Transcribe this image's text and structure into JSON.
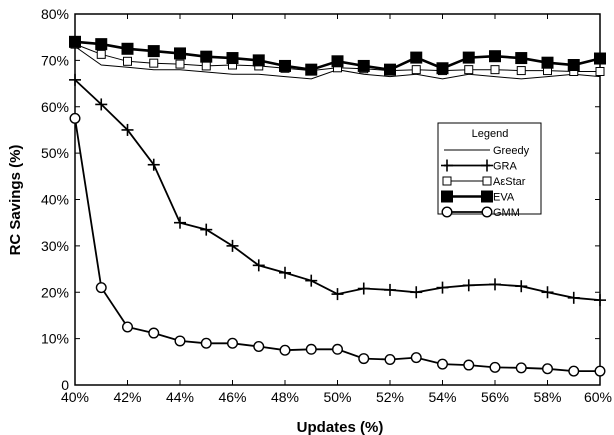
{
  "chart_data": {
    "type": "line",
    "title": "",
    "xlabel": "Updates (%)",
    "ylabel": "RC Savings (%)",
    "x": [
      40,
      41,
      42,
      43,
      44,
      45,
      46,
      47,
      48,
      49,
      50,
      51,
      52,
      53,
      54,
      55,
      56,
      57,
      58,
      59,
      60
    ],
    "xlim": [
      40,
      60
    ],
    "ylim": [
      0,
      80
    ],
    "x_ticks": [
      "40%",
      "42%",
      "44%",
      "46%",
      "48%",
      "50%",
      "52%",
      "54%",
      "56%",
      "58%",
      "60%"
    ],
    "y_ticks": [
      "0",
      "10%",
      "20%",
      "30%",
      "40%",
      "50%",
      "60%",
      "70%",
      "80%"
    ],
    "grid": false,
    "legend": {
      "title": "Legend",
      "position": "right"
    },
    "series": [
      {
        "name": "Greedy",
        "marker": "none",
        "color": "#000000",
        "values": [
          73.0,
          69.0,
          68.5,
          68.0,
          68.0,
          67.5,
          67.0,
          67.0,
          66.5,
          66.0,
          68.0,
          67.0,
          66.5,
          67.0,
          66.0,
          67.0,
          66.5,
          66.0,
          66.5,
          67.0,
          66.5
        ]
      },
      {
        "name": "GRA",
        "marker": "plus",
        "color": "#000000",
        "values": [
          65.8,
          60.5,
          55.0,
          47.5,
          35.0,
          33.5,
          30.0,
          25.8,
          24.2,
          22.5,
          19.6,
          20.8,
          20.5,
          20.0,
          21.0,
          21.5,
          21.7,
          21.3,
          20.0,
          18.8,
          18.3
        ]
      },
      {
        "name": "AεStar",
        "marker": "square-open",
        "color": "#000000",
        "values": [
          73.5,
          71.3,
          69.8,
          69.4,
          69.2,
          68.8,
          69.0,
          68.8,
          68.3,
          67.8,
          68.4,
          68.2,
          67.8,
          68.0,
          67.8,
          68.0,
          68.0,
          67.8,
          67.8,
          67.6,
          67.6
        ]
      },
      {
        "name": "EVA",
        "marker": "square-filled",
        "color": "#000000",
        "values": [
          74.0,
          73.5,
          72.5,
          72.0,
          71.5,
          70.8,
          70.5,
          70.0,
          68.8,
          68.0,
          69.8,
          68.8,
          68.0,
          70.6,
          68.3,
          70.6,
          70.9,
          70.5,
          69.5,
          69.0,
          70.4
        ]
      },
      {
        "name": "GMM",
        "marker": "circle-open",
        "color": "#000000",
        "values": [
          57.5,
          21.0,
          12.5,
          11.2,
          9.5,
          9.0,
          9.0,
          8.3,
          7.5,
          7.7,
          7.7,
          5.7,
          5.5,
          5.9,
          4.5,
          4.3,
          3.8,
          3.7,
          3.5,
          3.0,
          3.0
        ]
      }
    ]
  }
}
